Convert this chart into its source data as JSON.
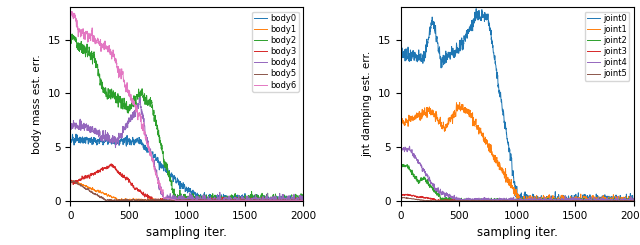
{
  "body_colors": [
    "#1f77b4",
    "#ff7f0e",
    "#2ca02c",
    "#d62728",
    "#9467bd",
    "#8c564b",
    "#e377c2"
  ],
  "joint_colors": [
    "#1f77b4",
    "#ff7f0e",
    "#2ca02c",
    "#d62728",
    "#9467bd",
    "#8c564b"
  ],
  "ylabel_left": "body mass est. err.",
  "ylabel_right": "jnt damping est. err.",
  "xlabel": "sampling iter.",
  "xlim": [
    0,
    2000
  ],
  "ylim_left": [
    0,
    18
  ],
  "ylim_right": [
    0,
    18
  ],
  "yticks_left": [
    0,
    5,
    10,
    15
  ],
  "yticks_right": [
    0,
    5,
    10,
    15
  ],
  "xticks": [
    0,
    500,
    1000,
    1500,
    2000
  ],
  "body_labels": [
    "body0",
    "body1",
    "body2",
    "body3",
    "body4",
    "body5",
    "body6"
  ],
  "joint_labels": [
    "joint0",
    "joint1",
    "joint2",
    "joint3",
    "joint4",
    "joint5"
  ]
}
